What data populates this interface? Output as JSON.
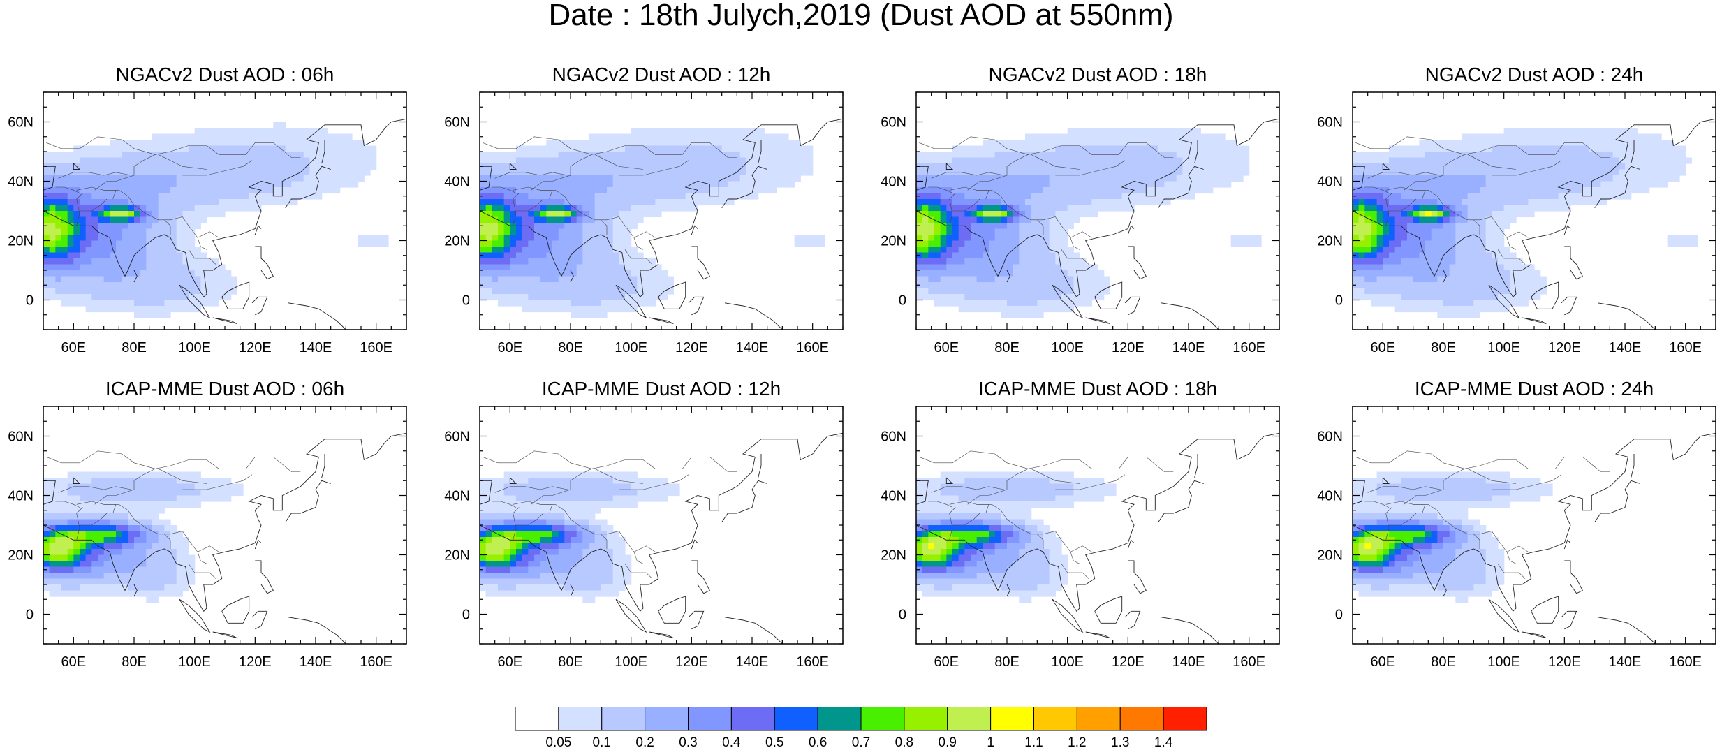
{
  "title": "Date : 18th Julych,2019 (Dust AOD at 550nm)",
  "lon_ticks": [
    "60E",
    "80E",
    "100E",
    "120E",
    "140E",
    "160E"
  ],
  "lat_ticks": [
    "60N",
    "40N",
    "20N",
    "0"
  ],
  "panels": [
    {
      "title": "NGACv2 Dust AOD : 06h",
      "model": "ngac",
      "hour": 6
    },
    {
      "title": "NGACv2 Dust AOD : 12h",
      "model": "ngac",
      "hour": 12
    },
    {
      "title": "NGACv2 Dust AOD : 18h",
      "model": "ngac",
      "hour": 18
    },
    {
      "title": "NGACv2 Dust AOD : 24h",
      "model": "ngac",
      "hour": 24
    },
    {
      "title": "ICAP-MME Dust AOD : 06h",
      "model": "icap",
      "hour": 6
    },
    {
      "title": "ICAP-MME Dust AOD : 12h",
      "model": "icap",
      "hour": 12
    },
    {
      "title": "ICAP-MME Dust AOD : 18h",
      "model": "icap",
      "hour": 18
    },
    {
      "title": "ICAP-MME Dust AOD : 24h",
      "model": "icap",
      "hour": 24
    }
  ],
  "map_extent": {
    "lon_min": 50,
    "lon_max": 170,
    "lat_min": -10,
    "lat_max": 70
  },
  "colorbar": {
    "levels": [
      "0.05",
      "0.1",
      "0.2",
      "0.3",
      "0.4",
      "0.5",
      "0.6",
      "0.7",
      "0.8",
      "0.9",
      "1",
      "1.1",
      "1.2",
      "1.3",
      "1.4"
    ],
    "colors": [
      "#ffffff",
      "#d4e0ff",
      "#b7c9ff",
      "#98b0ff",
      "#8296ff",
      "#6c6cf5",
      "#1060ff",
      "#00968c",
      "#48f000",
      "#96f000",
      "#c0f050",
      "#ffff00",
      "#ffc800",
      "#ffa000",
      "#ff7800",
      "#ff2000"
    ]
  }
}
